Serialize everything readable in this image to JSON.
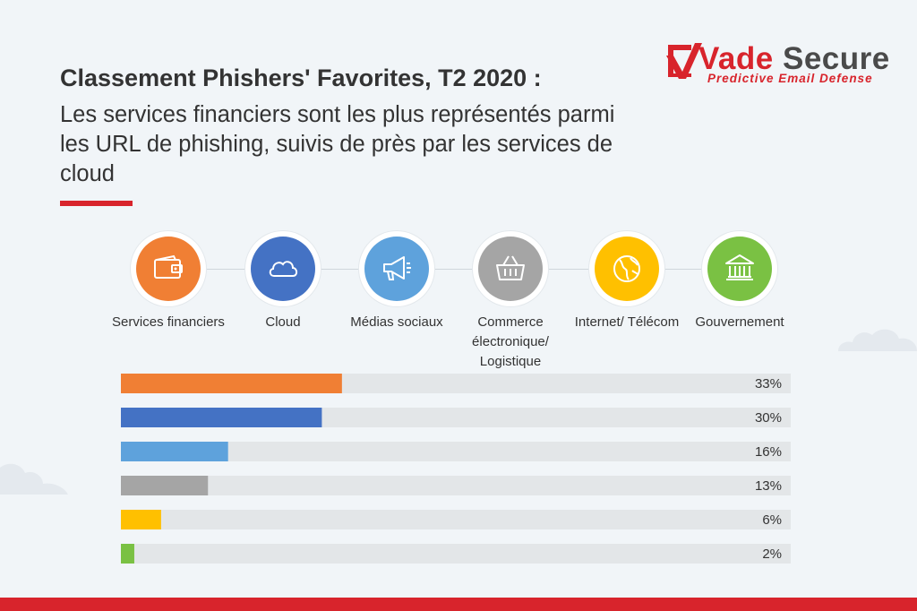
{
  "title": "Classement Phishers' Favorites, T2 2020 :",
  "subtitle": "Les services financiers sont les plus représentés parmi les URL de phishing, suivis de près par les services de cloud",
  "logo": {
    "word_red": "Vade",
    "word_dark": "Secure",
    "tagline": "Predictive Email Defense",
    "color_red": "#d8242c",
    "color_dark": "#4a4a4a"
  },
  "chart_data": {
    "type": "bar",
    "categories": [
      "Services financiers",
      "Cloud",
      "Médias sociaux",
      "Commerce électronique/ Logistique",
      "Internet/ Télécom",
      "Gouvernement"
    ],
    "values": [
      33,
      30,
      16,
      13,
      6,
      2
    ],
    "value_labels": [
      "33%",
      "30%",
      "16%",
      "13%",
      "6%",
      "2%"
    ],
    "colors": [
      "#f07f34",
      "#4472c4",
      "#5ea2dc",
      "#a5a5a5",
      "#ffc000",
      "#7ac143"
    ],
    "icons": [
      "wallet-icon",
      "cloud-icon",
      "megaphone-icon",
      "shopping-basket-icon",
      "globe-icon",
      "government-building-icon"
    ],
    "xlim": [
      0,
      100
    ],
    "orientation": "horizontal"
  }
}
